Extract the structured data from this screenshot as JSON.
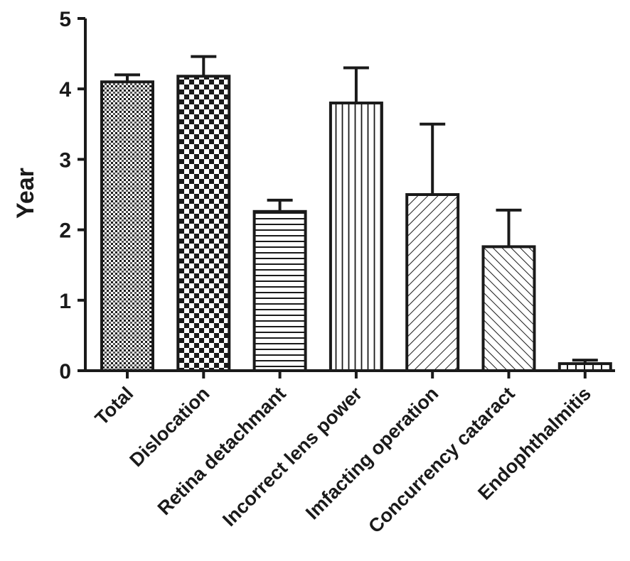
{
  "chart_data": {
    "type": "bar",
    "title": "",
    "xlabel": "",
    "ylabel": "Year",
    "ylim": [
      0,
      5
    ],
    "yticks": [
      0,
      1,
      2,
      3,
      4,
      5
    ],
    "grid": false,
    "legend": "none",
    "categories": [
      "Total",
      "Dislocation",
      "Retina detachmant",
      "Incorrect lens power",
      "Imfacting operation",
      "Concurrency cataract",
      "Endophthalmitis"
    ],
    "series": [
      {
        "values": [
          4.1,
          4.18,
          2.26,
          3.8,
          2.5,
          1.76,
          0.1
        ],
        "errors": [
          0.1,
          0.28,
          0.16,
          0.5,
          1.0,
          0.52,
          0.05
        ],
        "patterns": [
          "dots",
          "checker",
          "hlines",
          "vlines",
          "diag-up",
          "diag-up-dense",
          "vlines-sparse"
        ]
      }
    ],
    "colors": {
      "stroke": "#1a1a1a",
      "fill": "#ffffff"
    }
  }
}
